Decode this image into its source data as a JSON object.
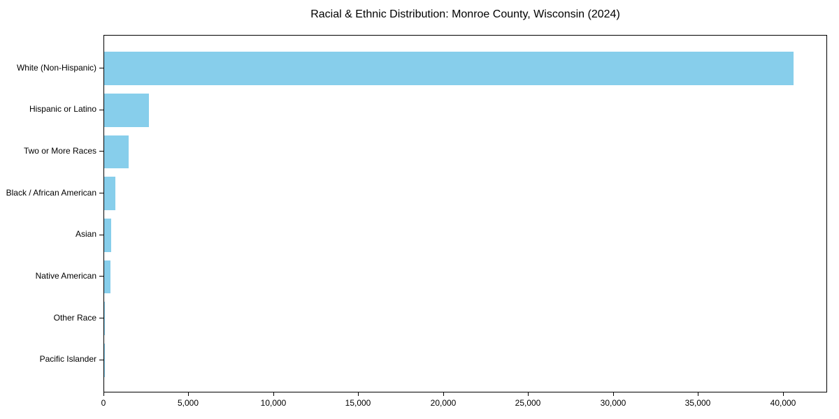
{
  "chart_data": {
    "type": "bar",
    "orientation": "horizontal",
    "title": "Racial & Ethnic Distribution: Monroe County, Wisconsin (2024)",
    "categories": [
      "White (Non-Hispanic)",
      "Hispanic or Latino",
      "Two or More Races",
      "Black / African American",
      "Asian",
      "Native American",
      "Other Race",
      "Pacific Islander"
    ],
    "values": [
      40600,
      2650,
      1440,
      650,
      420,
      350,
      60,
      20
    ],
    "xlabel": "",
    "ylabel": "",
    "xlim": [
      0,
      42600
    ],
    "x_tick_values": [
      0,
      5000,
      10000,
      15000,
      20000,
      25000,
      30000,
      35000,
      40000
    ],
    "x_tick_labels": [
      "0",
      "5,000",
      "10,000",
      "15,000",
      "20,000",
      "25,000",
      "30,000",
      "35,000",
      "40,000"
    ],
    "bar_color": "#87CEEB",
    "spine_color": "#000000",
    "background_color": "#ffffff",
    "grid": false,
    "legend": false
  }
}
